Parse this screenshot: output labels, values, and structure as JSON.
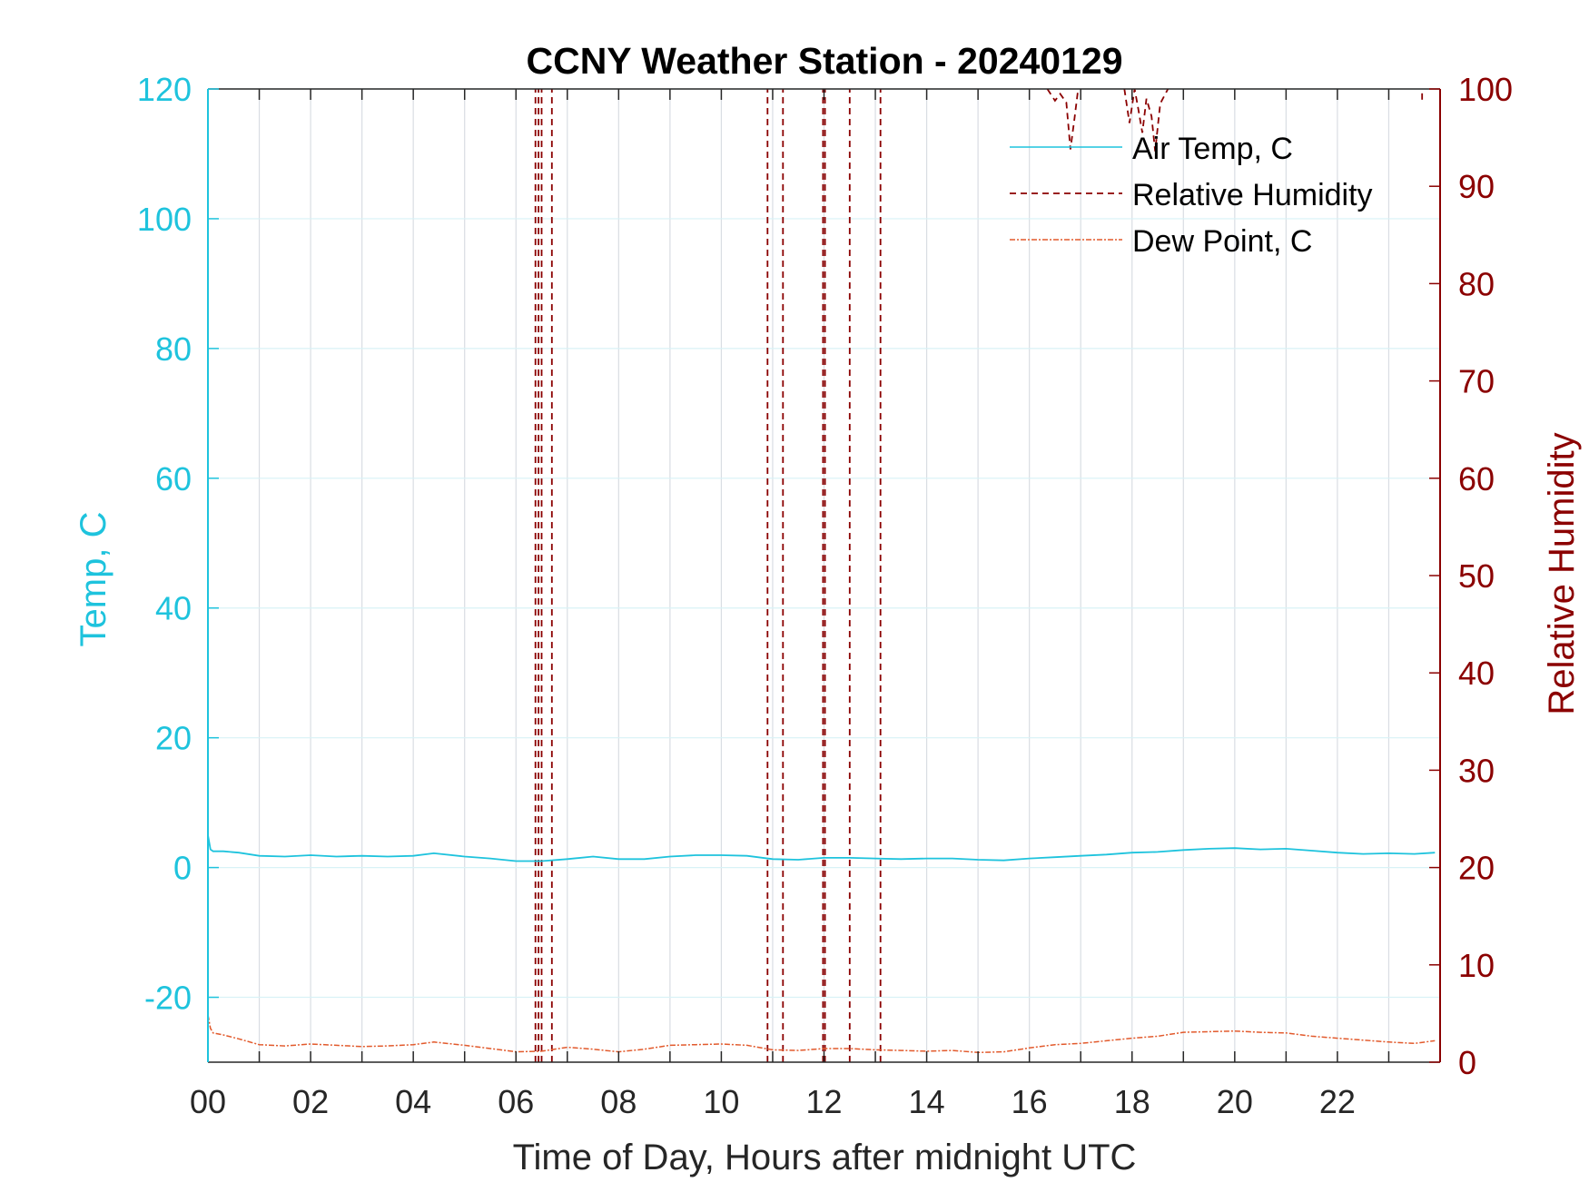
{
  "chart_data": {
    "type": "line",
    "title": "CCNY Weather Station - 20240129",
    "xlabel": "Time of Day, Hours after midnight UTC",
    "ylabel_left": "Temp, C",
    "ylabel_right": "Relative Humidity",
    "xlim": [
      0,
      24
    ],
    "ylim_left": [
      -30,
      120
    ],
    "ylim_right": [
      0,
      100
    ],
    "x_ticks": [
      0,
      2,
      4,
      6,
      8,
      10,
      12,
      14,
      16,
      18,
      20,
      22
    ],
    "x_tick_labels": [
      "00",
      "02",
      "04",
      "06",
      "08",
      "10",
      "12",
      "14",
      "16",
      "18",
      "20",
      "22"
    ],
    "y_ticks_left": [
      -20,
      0,
      20,
      40,
      60,
      80,
      100,
      120
    ],
    "y_tick_labels_left": [
      "-20",
      "0",
      "20",
      "40",
      "60",
      "80",
      "100",
      "120"
    ],
    "y_ticks_right": [
      0,
      10,
      20,
      30,
      40,
      50,
      60,
      70,
      80,
      90,
      100
    ],
    "y_tick_labels_right": [
      "0",
      "10",
      "20",
      "30",
      "40",
      "50",
      "60",
      "70",
      "80",
      "90",
      "100"
    ],
    "grid": true,
    "legend_position": "top-right",
    "colors": {
      "air_temp": "#1ec3dd",
      "relative_humidity": "#8b0000",
      "dew_point": "#e25a2c",
      "left_axis": "#1ec3dd",
      "right_axis": "#8b0000",
      "grid": "#d9dde3"
    },
    "series": [
      {
        "name": "Air Temp, C",
        "axis": "left",
        "style": "solid",
        "x": [
          0.0,
          0.05,
          0.1,
          0.3,
          0.6,
          1.0,
          1.5,
          2.0,
          2.5,
          3.0,
          3.5,
          4.0,
          4.4,
          5.0,
          5.5,
          6.0,
          6.5,
          7.0,
          7.5,
          8.0,
          8.5,
          9.0,
          9.5,
          10.0,
          10.5,
          11.0,
          11.5,
          12.0,
          12.5,
          13.0,
          13.5,
          14.0,
          14.5,
          15.0,
          15.5,
          16.0,
          16.5,
          17.0,
          17.5,
          18.0,
          18.5,
          19.0,
          19.5,
          20.0,
          20.5,
          21.0,
          21.5,
          22.0,
          22.5,
          23.0,
          23.5,
          23.9
        ],
        "values": [
          5.0,
          2.8,
          2.5,
          2.5,
          2.3,
          1.8,
          1.7,
          1.9,
          1.7,
          1.8,
          1.7,
          1.8,
          2.2,
          1.7,
          1.4,
          1.0,
          1.0,
          1.3,
          1.7,
          1.3,
          1.3,
          1.7,
          1.9,
          1.9,
          1.8,
          1.3,
          1.2,
          1.5,
          1.5,
          1.4,
          1.3,
          1.4,
          1.4,
          1.2,
          1.1,
          1.4,
          1.6,
          1.8,
          2.0,
          2.3,
          2.4,
          2.7,
          2.9,
          3.0,
          2.8,
          2.9,
          2.6,
          2.3,
          2.1,
          2.2,
          2.1,
          2.3
        ]
      },
      {
        "name": "Relative Humidity",
        "axis": "right",
        "style": "dashed",
        "segments": [
          {
            "x": [
              6.38,
              6.38
            ],
            "values": [
              0,
              100
            ]
          },
          {
            "x": [
              6.44,
              6.44
            ],
            "values": [
              0,
              100
            ]
          },
          {
            "x": [
              6.5,
              6.5
            ],
            "values": [
              0,
              100
            ]
          },
          {
            "x": [
              6.7,
              6.7
            ],
            "values": [
              0,
              100
            ]
          },
          {
            "x": [
              10.9,
              10.9
            ],
            "values": [
              0,
              100
            ]
          },
          {
            "x": [
              11.2,
              11.2
            ],
            "values": [
              0,
              100
            ]
          },
          {
            "x": [
              11.98,
              11.98
            ],
            "values": [
              0,
              100
            ]
          },
          {
            "x": [
              12.02,
              12.02
            ],
            "values": [
              0,
              100
            ]
          },
          {
            "x": [
              12.5,
              12.5
            ],
            "values": [
              0,
              100
            ]
          },
          {
            "x": [
              13.1,
              13.1
            ],
            "values": [
              0,
              100
            ]
          },
          {
            "x": [
              16.35,
              16.5,
              16.6,
              16.72,
              16.8,
              16.88,
              16.95
            ],
            "values": [
              100,
              98.8,
              99.5,
              98.6,
              93.8,
              97.0,
              100
            ]
          },
          {
            "x": [
              17.85,
              17.95,
              18.05,
              18.12,
              18.2,
              18.28,
              18.38,
              18.45,
              18.55,
              18.7
            ],
            "values": [
              100,
              96.5,
              100,
              98.0,
              95.5,
              99.0,
              97.2,
              93.6,
              98.5,
              100
            ]
          },
          {
            "x": [
              23.65,
              23.65
            ],
            "values": [
              98.9,
              100
            ]
          }
        ]
      },
      {
        "name": "Dew Point, C",
        "axis": "left",
        "style": "dashdot",
        "x": [
          0.0,
          0.05,
          0.1,
          0.3,
          0.6,
          1.0,
          1.5,
          2.0,
          2.5,
          3.0,
          3.5,
          4.0,
          4.4,
          5.0,
          5.5,
          6.0,
          6.5,
          7.0,
          7.5,
          8.0,
          8.5,
          9.0,
          9.5,
          10.0,
          10.5,
          11.0,
          11.5,
          12.0,
          12.5,
          13.0,
          13.5,
          14.0,
          14.5,
          15.0,
          15.5,
          16.0,
          16.5,
          17.0,
          17.5,
          18.0,
          18.5,
          19.0,
          19.5,
          20.0,
          20.5,
          21.0,
          21.5,
          22.0,
          22.5,
          23.0,
          23.5,
          23.9
        ],
        "values": [
          -22.7,
          -24.8,
          -25.5,
          -25.8,
          -26.4,
          -27.3,
          -27.5,
          -27.2,
          -27.4,
          -27.6,
          -27.5,
          -27.3,
          -26.9,
          -27.4,
          -27.9,
          -28.4,
          -28.3,
          -27.7,
          -28.0,
          -28.4,
          -28.0,
          -27.4,
          -27.3,
          -27.2,
          -27.4,
          -28.1,
          -28.2,
          -27.9,
          -27.9,
          -28.1,
          -28.2,
          -28.3,
          -28.2,
          -28.5,
          -28.4,
          -27.8,
          -27.3,
          -27.1,
          -26.7,
          -26.3,
          -26.0,
          -25.4,
          -25.3,
          -25.2,
          -25.4,
          -25.5,
          -26.0,
          -26.3,
          -26.6,
          -26.9,
          -27.1,
          -26.7
        ]
      }
    ]
  }
}
